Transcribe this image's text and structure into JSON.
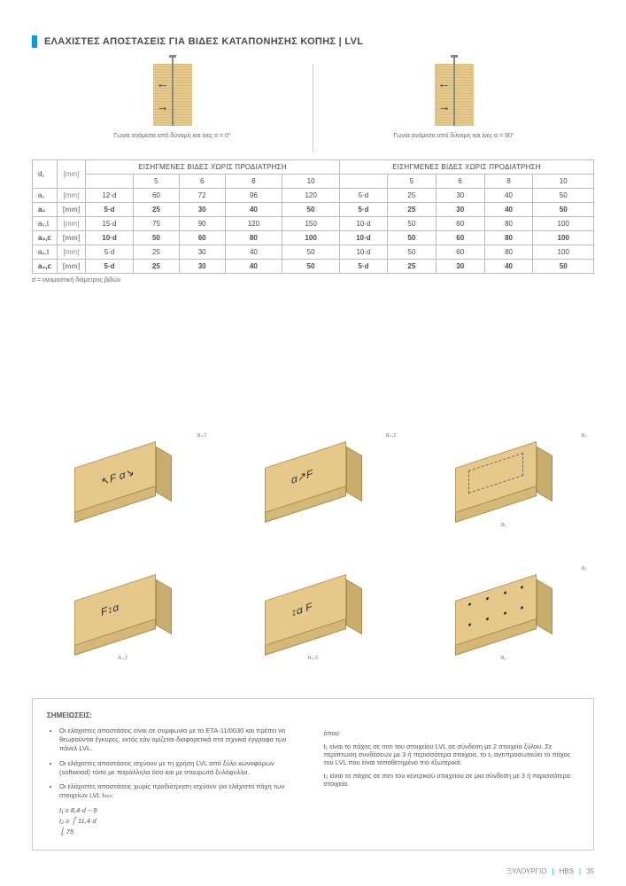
{
  "page_title": "ΕΛΑΧΙΣΤΕΣ ΑΠΟΣΤΑΣΕΙΣ ΓΙΑ ΒΙΔΕΣ ΚΑΤΑΠΟΝΗΣΗΣ ΚΟΠΗΣ | LVL",
  "accent_color": "#00a0de",
  "wood_color": "#e6c98a",
  "diagrams": {
    "left_caption": "Γωνία ανάμεσα από δύναμη και ίνες α = 0°",
    "right_caption": "Γωνία ανάμεσα από δύναμη και ίνες α = 90°"
  },
  "table": {
    "group_header": "ΕΙΣΗΓΜΕΝΕΣ ΒΙΔΕΣ ΧΩΡΙΣ ΠΡΟΔΙΑΤΡΗΣΗ",
    "d1_label": "d₁",
    "mm_label": "[mm]",
    "cols": [
      "5",
      "6",
      "8",
      "10"
    ],
    "rows": [
      {
        "label": "a₁",
        "unit": "[mm]",
        "spec_l": "12·d",
        "vals_l": [
          "60",
          "72",
          "96",
          "120"
        ],
        "spec_r": "5·d",
        "vals_r": [
          "25",
          "30",
          "40",
          "50"
        ],
        "bold": false
      },
      {
        "label": "a₂",
        "unit": "[mm]",
        "spec_l": "5·d",
        "vals_l": [
          "25",
          "30",
          "40",
          "50"
        ],
        "spec_r": "5·d",
        "vals_r": [
          "25",
          "30",
          "40",
          "50"
        ],
        "bold": true
      },
      {
        "label": "a₃,t",
        "unit": "[mm]",
        "spec_l": "15·d",
        "vals_l": [
          "75",
          "90",
          "120",
          "150"
        ],
        "spec_r": "10·d",
        "vals_r": [
          "50",
          "60",
          "80",
          "100"
        ],
        "bold": false
      },
      {
        "label": "a₃,c",
        "unit": "[mm]",
        "spec_l": "10·d",
        "vals_l": [
          "50",
          "60",
          "80",
          "100"
        ],
        "spec_r": "10·d",
        "vals_r": [
          "50",
          "60",
          "80",
          "100"
        ],
        "bold": true
      },
      {
        "label": "a₄,t",
        "unit": "[mm]",
        "spec_l": "5·d",
        "vals_l": [
          "25",
          "30",
          "40",
          "50"
        ],
        "spec_r": "10·d",
        "vals_r": [
          "50",
          "60",
          "80",
          "100"
        ],
        "bold": false
      },
      {
        "label": "a₄,c",
        "unit": "[mm]",
        "spec_l": "5·d",
        "vals_l": [
          "25",
          "30",
          "40",
          "50"
        ],
        "spec_r": "5·d",
        "vals_r": [
          "25",
          "30",
          "40",
          "50"
        ],
        "bold": true
      }
    ],
    "footnote": "d = ονομαστική διάμετρος βιδών"
  },
  "iso_labels": {
    "top_row": [
      "a₄,t",
      "a₄,c",
      "a₂"
    ],
    "bottom_row": [
      "a₃,t",
      "a₃,c",
      "a₁"
    ],
    "a1": "a₁",
    "a2": "a₂"
  },
  "notes": {
    "title": "ΣΗΜΕΙΩΣΕΙΣ:",
    "left": [
      "Οι ελάχιστες αποστάσεις είναι σε συμφωνία με το ETA-11/0030 και πρέπει να θεωρούνται έγκυρες, εκτός εάν ορίζεται διαφορετικά στα τεχνικά έγγραφα των πάνελ LVL.",
      "Οι ελάχιστες αποστάσεις ισχύουν με τη χρήση LVL από ξύλο κωνοφόρων (softwood) τόσο με παράλληλα όσο και με σταυρωτά ξυλόφυλλα.",
      "Οι ελάχιστες αποστάσεις χωρίς προδιάτρηση ισχύουν για ελάχιστα πάχη των στοιχείων LVL tₘᵢₙ:"
    ],
    "formula_lines": [
      "t₁ ≥ 8,4·d − 9",
      "t₂ ≥ ⎧ 11,4·d",
      "       ⎩ 75"
    ],
    "right_intro": "όπου:",
    "right": [
      "t₁ είναι το πάχος σε mm του στοιχείου LVL σε σύνδεση με 2 στοιχεία ξύλου. Σε περίπτωση συνδέσεων με 3 ή περισσότερα στοιχεία, το t₁ αντιπροσωπεύει το πάχος του LVL που είναι τοποθετημένο πιο εξωτερικά.",
      "t₂ είναι το πάχος σε mm του κεντρικού στοιχείου σε μια σύνδεση με 3 ή περισσότερα στοιχεία."
    ]
  },
  "footer": {
    "left": "ΞΥΛΟΥΡΓΙΟ",
    "mid": "HBS",
    "page": "35"
  }
}
